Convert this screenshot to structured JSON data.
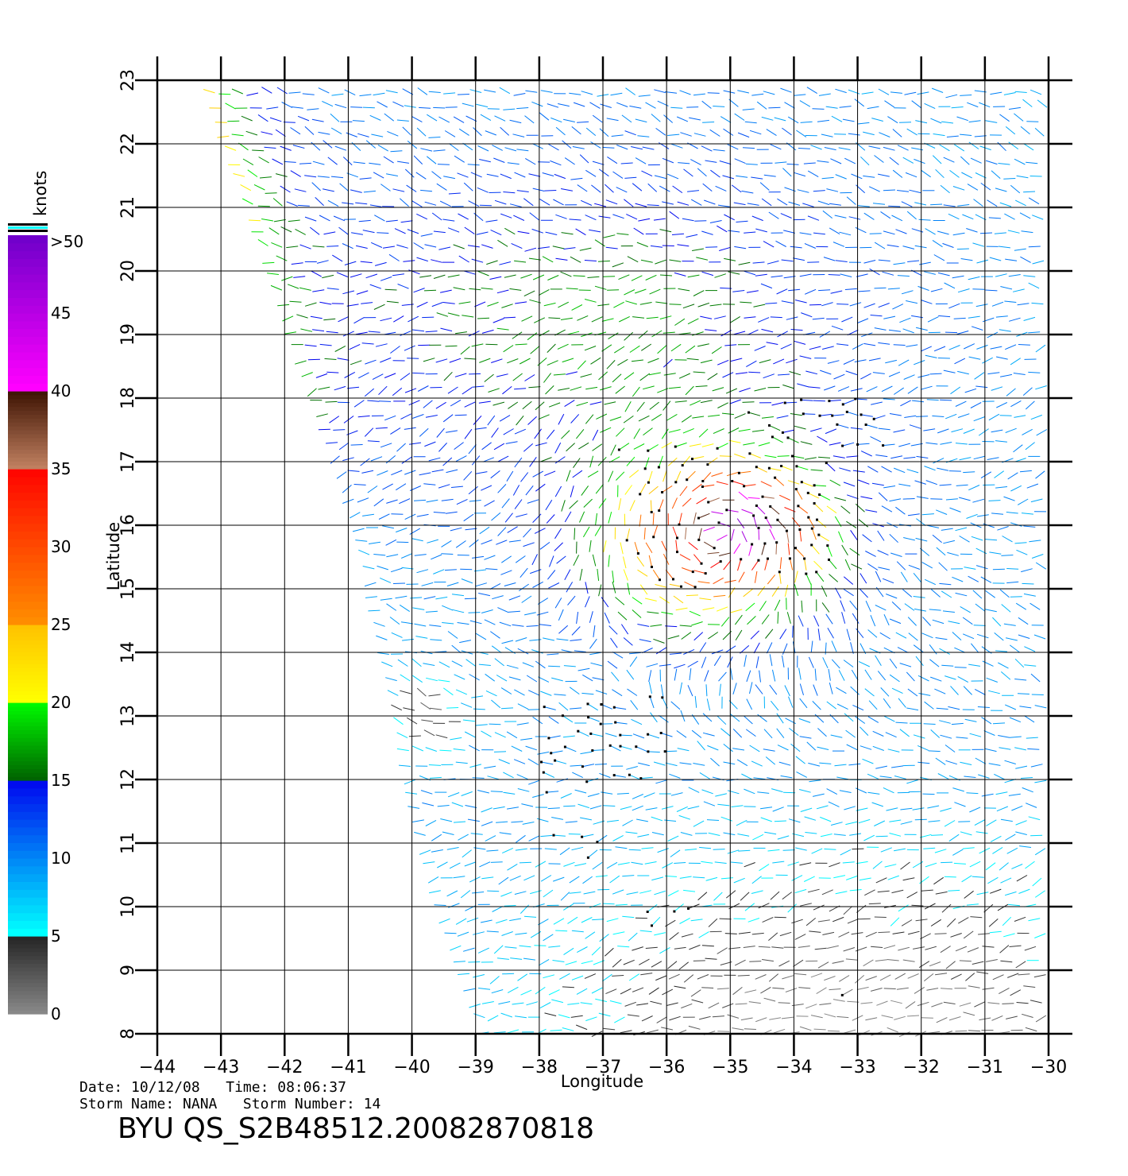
{
  "map": {
    "xlabel": "Longitude",
    "ylabel": "Latitude",
    "lon_ticks": [
      -44,
      -43,
      -42,
      -41,
      -40,
      -39,
      -38,
      -37,
      -36,
      -35,
      -34,
      -33,
      -32,
      -31,
      -30
    ],
    "lat_ticks": [
      8,
      9,
      10,
      11,
      12,
      13,
      14,
      15,
      16,
      17,
      18,
      19,
      20,
      21,
      22,
      23
    ],
    "xlim": [
      -44,
      -30
    ],
    "ylim": [
      8,
      23
    ],
    "grid": true,
    "swath_west_edge": [
      [
        -43.2,
        23
      ],
      [
        -40.8,
        16
      ],
      [
        -40.2,
        13
      ],
      [
        -39.8,
        11
      ],
      [
        -39.5,
        10
      ],
      [
        -38.8,
        8
      ]
    ],
    "storm_center": [
      -35.2,
      15.8
    ],
    "flag_regions": [
      {
        "lon": [
          -36.6,
          -33.3
        ],
        "lat": [
          14.9,
          17.4
        ]
      },
      {
        "lon": [
          -34.6,
          -32.4
        ],
        "lat": [
          16.9,
          18.0
        ]
      },
      {
        "lon": [
          -37.8,
          -35.8
        ],
        "lat": [
          11.8,
          13.3
        ]
      },
      {
        "lon": [
          -37.6,
          -36.9
        ],
        "lat": [
          10.8,
          11.2
        ]
      },
      {
        "lon": [
          -36.2,
          -35.4
        ],
        "lat": [
          9.7,
          10.1
        ]
      },
      {
        "lon": [
          -33.4,
          -32.9
        ],
        "lat": [
          8.6,
          8.9
        ]
      }
    ]
  },
  "colorbar": {
    "unit_label": "knots",
    "top_label": ">50",
    "segments": [
      {
        "from": 0,
        "to": 5,
        "color_start": "#888888",
        "color_end": "#222222"
      },
      {
        "from": 5,
        "to": 15,
        "color_start": "#00ffff",
        "color_end": "#0000ee"
      },
      {
        "from": 15,
        "to": 20,
        "color_start": "#006400",
        "color_end": "#00ff00"
      },
      {
        "from": 20,
        "to": 25,
        "color_start": "#ffff00",
        "color_end": "#ffc000"
      },
      {
        "from": 25,
        "to": 35,
        "color_start": "#ff8c00",
        "color_end": "#ff0000"
      },
      {
        "from": 35,
        "to": 40,
        "color_start": "#c08060",
        "color_end": "#3a1000"
      },
      {
        "from": 40,
        "to": 50,
        "color_start": "#ff00ff",
        "color_end": "#6a00c8"
      }
    ],
    "labels": [
      "0",
      "5",
      "10",
      "15",
      "20",
      "25",
      "30",
      "35",
      "40",
      "45"
    ],
    "label_values": [
      0,
      5,
      10,
      15,
      20,
      25,
      30,
      35,
      40,
      45
    ],
    "top_stripes": [
      "#000000",
      "#00ffff",
      "#000000"
    ]
  },
  "meta": {
    "date_line": "Date: 10/12/08   Time: 08:06:37",
    "storm_line": "Storm Name: NANA   Storm Number: 14",
    "product": "BYU QS_S2B48512.20082870818"
  }
}
